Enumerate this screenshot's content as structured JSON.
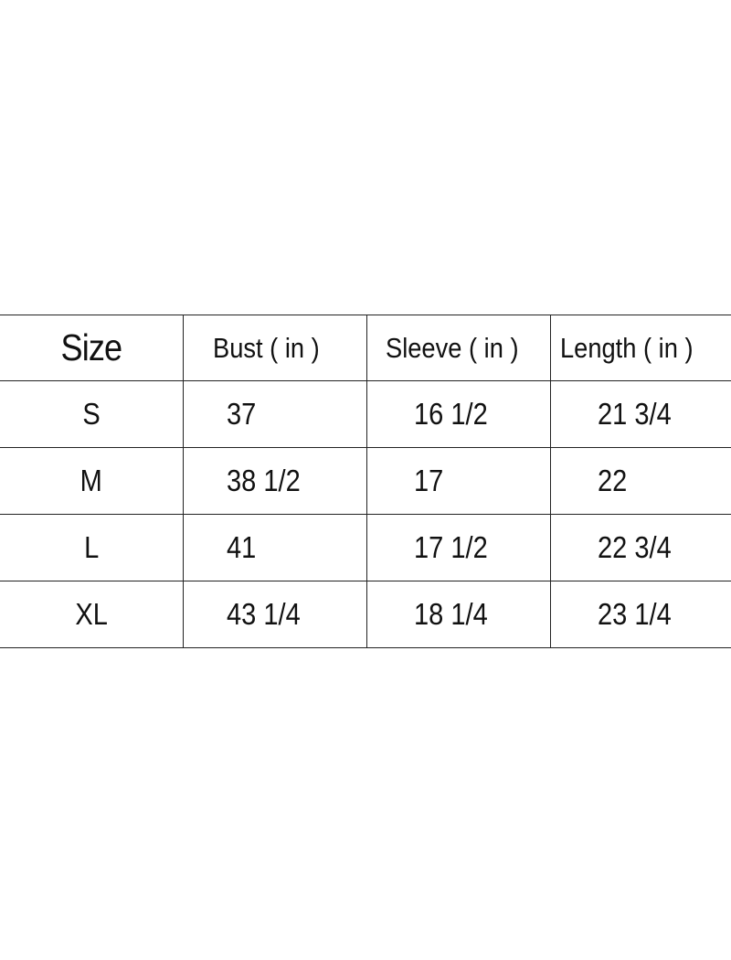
{
  "headers": [
    "Size",
    "Bust ( in )",
    "Sleeve ( in )",
    "Length ( in )"
  ],
  "rows": [
    [
      "S",
      "37",
      "16 1/2",
      "21 3/4"
    ],
    [
      "M",
      "38 1/2",
      "17",
      "22"
    ],
    [
      "L",
      "41",
      "17 1/2",
      "22 3/4"
    ],
    [
      "XL",
      "43 1/4",
      "18 1/4",
      "23 1/4"
    ]
  ]
}
